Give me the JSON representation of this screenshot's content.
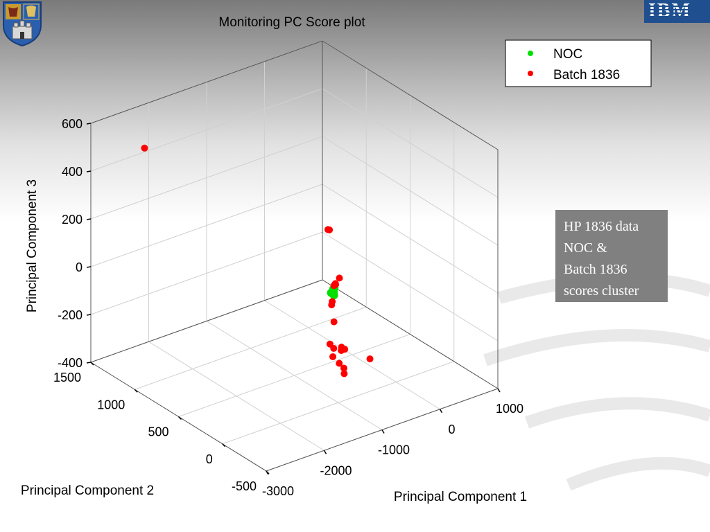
{
  "slide": {
    "note_lines": [
      "HP 1836 data",
      "NOC &",
      "Batch 1836",
      "scores cluster"
    ],
    "logo_text": "IBM",
    "colors": {
      "note_bg": "#808080",
      "noc": "#00e000",
      "batch": "#ff0000"
    },
    "icons": [
      "university-crest-icon",
      "ibm-logo-icon"
    ]
  },
  "chart_data": {
    "type": "scatter3d",
    "title": "Monitoring PC Score plot",
    "xlabel": "Principal Component 1",
    "ylabel": "Principal Component 2",
    "zlabel": "Principal Component 3",
    "xlim": [
      -3000,
      1000
    ],
    "ylim": [
      -500,
      1500
    ],
    "zlim": [
      -400,
      600
    ],
    "xticks": [
      "-3000",
      "-2000",
      "-1000",
      "0",
      "1000"
    ],
    "yticks": [
      "-500",
      "0",
      "500",
      "1000",
      "1500"
    ],
    "zticks": [
      "-400",
      "-200",
      "0",
      "200",
      "400",
      "600"
    ],
    "grid": true,
    "legend_position": "top-right",
    "series": [
      {
        "name": "NOC",
        "color": "#00e000",
        "points": [
          [
            -700,
            250,
            -20
          ],
          [
            -690,
            260,
            -10
          ],
          [
            -710,
            240,
            -30
          ],
          [
            -680,
            255,
            -5
          ],
          [
            -720,
            265,
            -25
          ]
        ]
      },
      {
        "name": "Batch 1836",
        "color": "#ff0000",
        "points": [
          [
            -2300,
            1350,
            470
          ],
          [
            -1000,
            100,
            300
          ],
          [
            -1010,
            110,
            300
          ],
          [
            -700,
            230,
            20
          ],
          [
            -710,
            240,
            10
          ],
          [
            -600,
            250,
            30
          ],
          [
            -650,
            260,
            5
          ],
          [
            -800,
            200,
            -40
          ],
          [
            -780,
            220,
            -60
          ],
          [
            -800,
            180,
            -120
          ],
          [
            -900,
            160,
            -200
          ],
          [
            -850,
            150,
            -220
          ],
          [
            -880,
            140,
            -250
          ],
          [
            -700,
            160,
            -230
          ],
          [
            -720,
            150,
            -240
          ],
          [
            -660,
            150,
            -240
          ],
          [
            -750,
            100,
            -300
          ],
          [
            -800,
            120,
            -280
          ],
          [
            -760,
            90,
            -320
          ],
          [
            -300,
            100,
            -300
          ]
        ]
      }
    ]
  }
}
